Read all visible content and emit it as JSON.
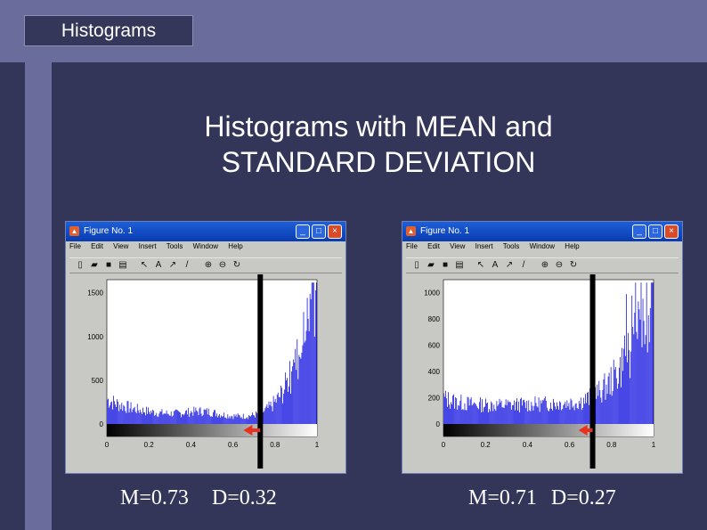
{
  "header": {
    "tab_label": "Histograms"
  },
  "slide": {
    "title_line1": "Histograms with MEAN and",
    "title_line2": "STANDARD DEVIATION"
  },
  "windows": [
    {
      "title": "Figure No. 1",
      "menu": [
        "File",
        "Edit",
        "View",
        "Insert",
        "Tools",
        "Window",
        "Help"
      ],
      "caption_mean": "M=0.73",
      "caption_dev": "D=0.32"
    },
    {
      "title": "Figure No. 1",
      "menu": [
        "File",
        "Edit",
        "View",
        "Insert",
        "Tools",
        "Window",
        "Help"
      ],
      "caption_mean": "M=0.71",
      "caption_dev": "D=0.27"
    }
  ],
  "chart_data": [
    {
      "type": "bar",
      "x_ticks": [
        "0",
        "0.2",
        "0.4",
        "0.6",
        "0.8",
        "1"
      ],
      "y_ticks": [
        "0",
        "500",
        "1000",
        "1500"
      ],
      "xlim": [
        0,
        1
      ],
      "ylim": [
        0,
        1650
      ],
      "mean_marker": 0.73,
      "deviation": 0.32,
      "bar_color": "#0000dd"
    },
    {
      "type": "bar",
      "x_ticks": [
        "0",
        "0.2",
        "0.4",
        "0.6",
        "0.8",
        "1"
      ],
      "y_ticks": [
        "0",
        "200",
        "400",
        "600",
        "800",
        "1000"
      ],
      "xlim": [
        0,
        1
      ],
      "ylim": [
        0,
        1100
      ],
      "mean_marker": 0.71,
      "deviation": 0.27,
      "bar_color": "#0000dd"
    }
  ]
}
